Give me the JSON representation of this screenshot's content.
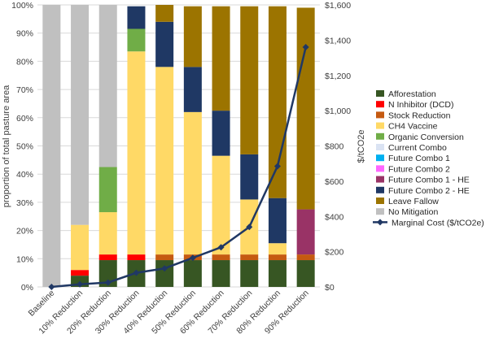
{
  "chart_data": {
    "type": "bar",
    "subtype": "stacked-percent-with-line",
    "categories": [
      "Baseline",
      "10% Reduction",
      "20% Reduction",
      "30% Reduction",
      "40% Reduction",
      "50% Reduction",
      "60% Reduction",
      "70% Reduction",
      "80% Reduction",
      "90% Reduction"
    ],
    "ylabel": "proportion of total pasture area",
    "y2label": "$/tCO2e",
    "ylim": [
      0,
      100
    ],
    "y2lim": [
      0,
      1600
    ],
    "yticks": [
      "0%",
      "10%",
      "20%",
      "30%",
      "40%",
      "50%",
      "60%",
      "70%",
      "80%",
      "90%",
      "100%"
    ],
    "y2ticks": [
      "$0",
      "$200",
      "$400",
      "$600",
      "$800",
      "$1,000",
      "$1,200",
      "$1,400",
      "$1,600"
    ],
    "grid": true,
    "legend_position": "right",
    "series": [
      {
        "name": "Afforestation",
        "color": "#375623",
        "values": [
          0,
          4,
          9.5,
          9.5,
          9.5,
          9.5,
          9.5,
          9.5,
          9.5,
          9.5
        ]
      },
      {
        "name": "N Inhibitor (DCD)",
        "color": "#ff0000",
        "values": [
          0,
          2,
          2,
          2,
          0,
          0,
          0,
          0,
          0,
          0
        ]
      },
      {
        "name": "Stock Reduction",
        "color": "#c55a11",
        "values": [
          0,
          0,
          0,
          0,
          2,
          2,
          2,
          2,
          2,
          2
        ]
      },
      {
        "name": "CH4 Vaccine",
        "color": "#ffd966",
        "values": [
          0,
          16,
          15,
          72,
          66.5,
          50.5,
          35,
          19.5,
          4,
          0
        ]
      },
      {
        "name": "Organic Conversion",
        "color": "#70ad47",
        "values": [
          0,
          0,
          16,
          8,
          0,
          0,
          0,
          0,
          0,
          0
        ]
      },
      {
        "name": "Current Combo",
        "color": "#dae3f3",
        "values": [
          0,
          0,
          0,
          0,
          0,
          0,
          0,
          0,
          0,
          0
        ]
      },
      {
        "name": "Future Combo 1",
        "color": "#00b0f0",
        "values": [
          0,
          0,
          0,
          0,
          0,
          0,
          0,
          0,
          0,
          0
        ]
      },
      {
        "name": "Future Combo 2",
        "color": "#ff66ff",
        "values": [
          0,
          0,
          0,
          0,
          0,
          0,
          0,
          0,
          0,
          0
        ]
      },
      {
        "name": "Future Combo 1 - HE",
        "color": "#993366",
        "values": [
          0,
          0,
          0,
          0,
          0,
          0,
          0,
          0,
          0,
          16
        ]
      },
      {
        "name": "Future Combo 2 - HE",
        "color": "#1f3864",
        "values": [
          0,
          0,
          0,
          8,
          16,
          16,
          16,
          16,
          16,
          0
        ]
      },
      {
        "name": "Leave Fallow",
        "color": "#9c7400",
        "values": [
          0,
          0,
          0,
          0,
          6,
          21.5,
          37,
          52.5,
          68,
          71.5
        ]
      },
      {
        "name": "No Mitigation",
        "color": "#c0c0c0",
        "values": [
          100,
          78,
          57.5,
          0,
          0,
          0,
          0,
          0,
          0,
          0
        ]
      }
    ],
    "line": {
      "name": "Marginal Cost ($/tCO2e)",
      "color": "#203864",
      "axis": "secondary",
      "values": [
        0,
        15,
        25,
        80,
        105,
        165,
        225,
        340,
        685,
        1360
      ]
    }
  }
}
